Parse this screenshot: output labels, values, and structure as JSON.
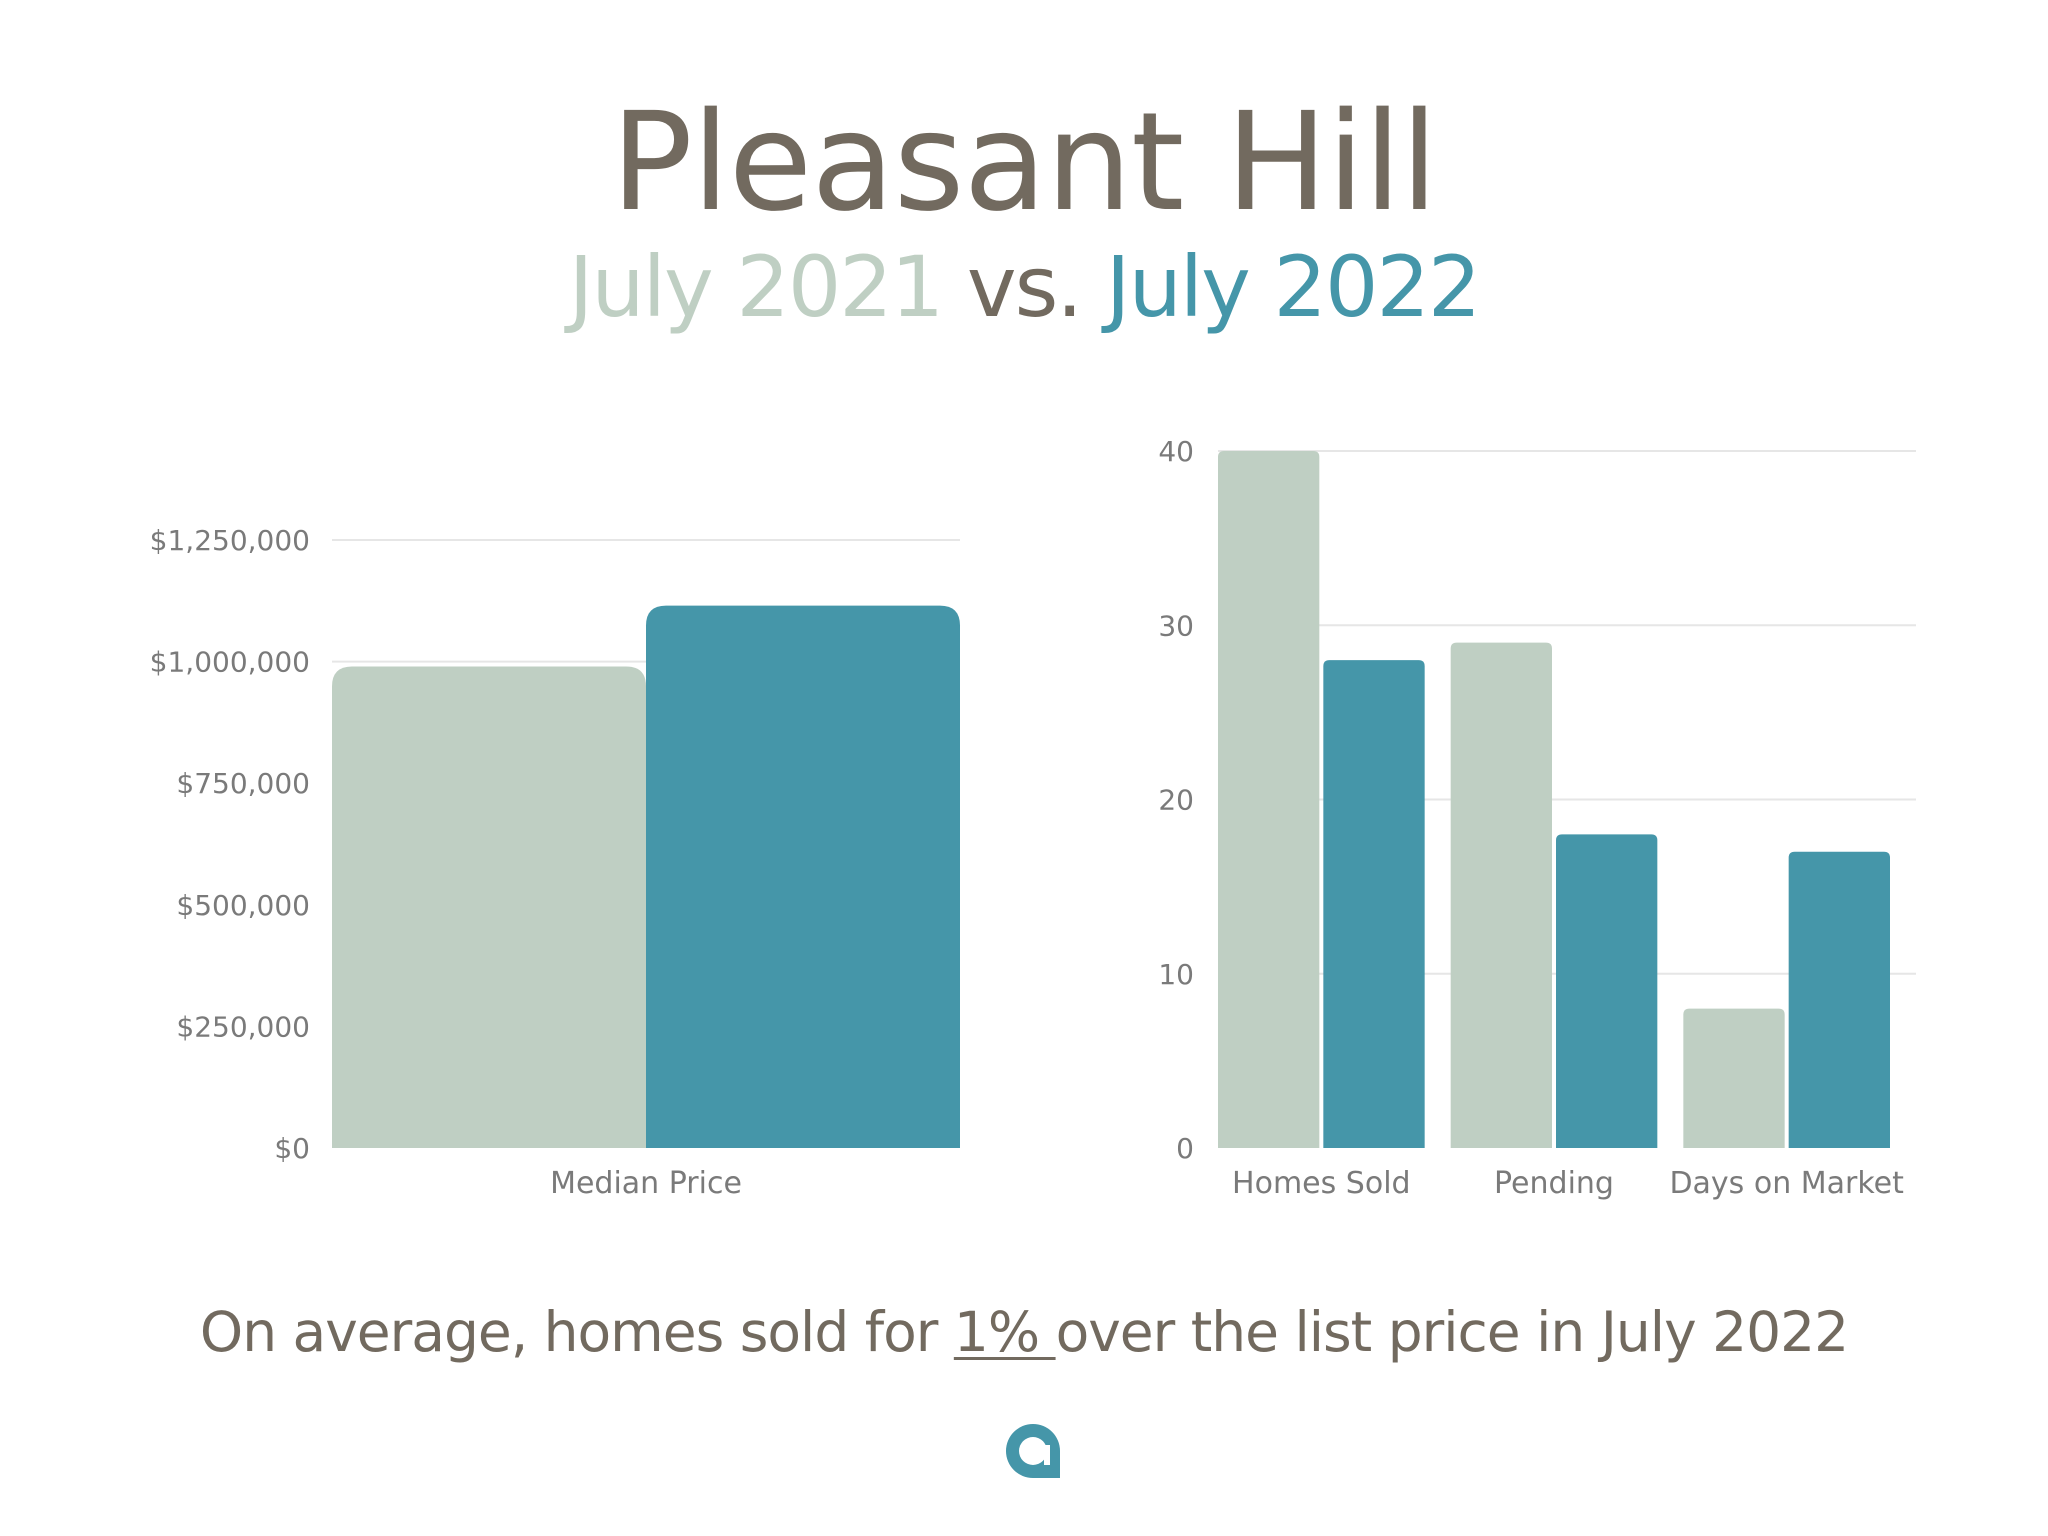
{
  "header": {
    "title": "Pleasant Hill",
    "subtitle_old": "July 2021",
    "subtitle_vs": "vs.",
    "subtitle_new": "July 2022"
  },
  "colors": {
    "old": "#bfcfc3",
    "new": "#4596a9",
    "text": "#726a5f",
    "grid": "#e6e6e6"
  },
  "chart_data": [
    {
      "type": "bar",
      "categories": [
        "Median Price"
      ],
      "series": [
        {
          "values": [
            990000
          ]
        },
        {
          "values": [
            1115000
          ]
        }
      ],
      "yticks": [
        "$0",
        "$250,000",
        "$500,000",
        "$750,000",
        "$1,000,000",
        "$1,250,000"
      ],
      "ylim": [
        0,
        1250000
      ],
      "grid": true
    },
    {
      "type": "bar",
      "categories": [
        "Homes Sold",
        "Pending",
        "Days on Market"
      ],
      "series": [
        {
          "values": [
            40,
            29,
            8
          ]
        },
        {
          "values": [
            28,
            18,
            17
          ]
        }
      ],
      "yticks": [
        "0",
        "10",
        "20",
        "30",
        "40"
      ],
      "ylim": [
        0,
        40
      ],
      "grid": true
    }
  ],
  "footer": {
    "prefix": "On average, homes sold for ",
    "highlight": "1% ",
    "suffix": "over the list price in July 2022"
  },
  "logo": {
    "icon": "a-logo-icon"
  }
}
